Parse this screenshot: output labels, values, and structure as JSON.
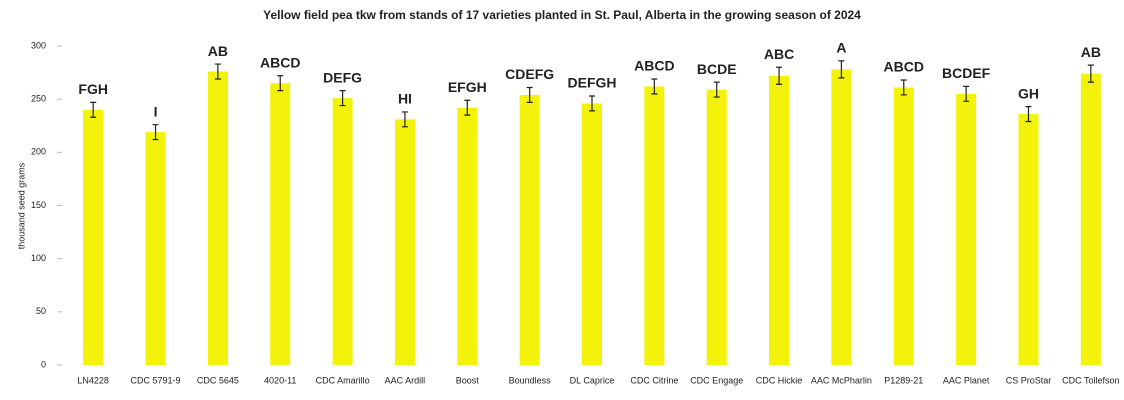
{
  "chart_data": {
    "type": "bar",
    "title": "Yellow field pea tkw from stands of 17 varieties planted in St. Paul, Alberta in the growing season of 2024",
    "y_label": "thousand seed grams",
    "categories": [
      "LN4228",
      "CDC 5791-9",
      "CDC 5645",
      "4020-11",
      "CDC Amarillo",
      "AAC Ardill",
      "Boost",
      "Boundless",
      "DL Caprice",
      "CDC Citrine",
      "CDC Engage",
      "CDC Hickie",
      "AAC McPharlin",
      "P1289-21",
      "AAC Planet",
      "CS ProStar",
      "CDC Tollefson"
    ],
    "values": [
      240,
      219,
      276,
      265,
      251,
      231,
      242,
      254,
      246,
      262,
      259,
      272,
      278,
      261,
      255,
      236,
      274
    ],
    "errors": [
      7,
      7,
      7,
      7,
      7,
      7,
      7,
      7,
      7,
      7,
      7,
      8,
      8,
      7,
      7,
      7,
      8
    ],
    "letters": [
      "FGH",
      "I",
      "AB",
      "ABCD",
      "DEFG",
      "HI",
      "EFGH",
      "CDEFG",
      "DEFGH",
      "ABCD",
      "BCDE",
      "ABC",
      "A",
      "ABCD",
      "BCDEF",
      "GH",
      "AB"
    ],
    "color": "#f2f20a",
    "ylim": [
      0,
      300
    ],
    "yticks": [
      0,
      50,
      100,
      150,
      200,
      250,
      300
    ],
    "grid": false
  }
}
